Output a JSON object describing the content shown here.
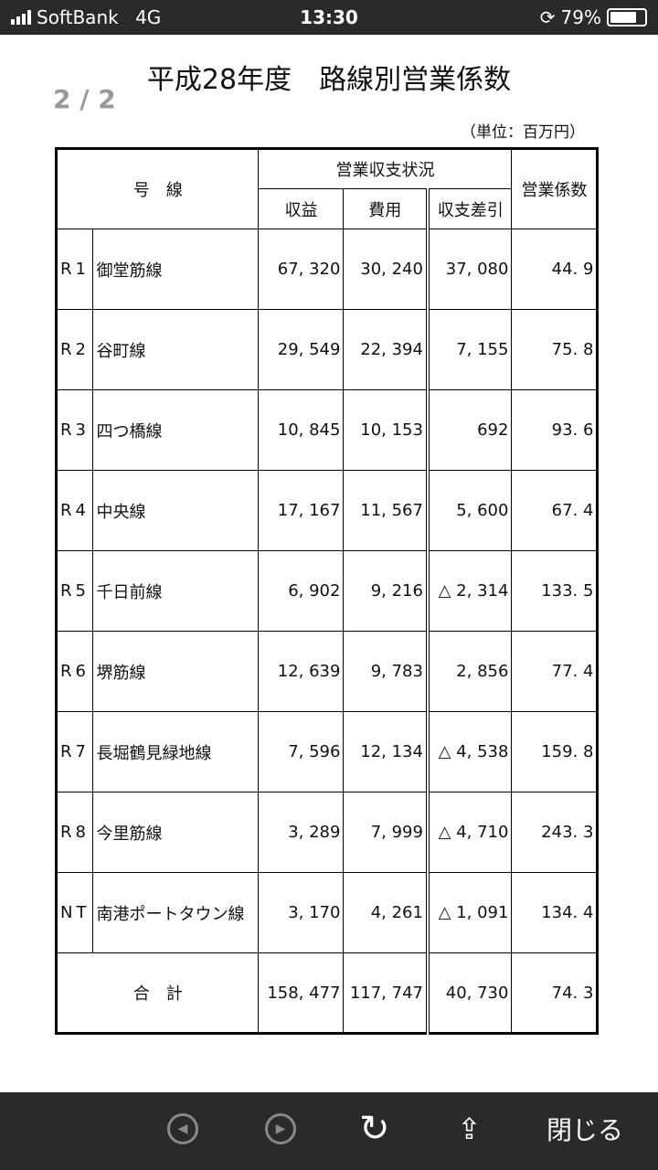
{
  "status": {
    "carrier": "SoftBank",
    "network": "4G",
    "time": "13:30",
    "battery": "79%",
    "battery_level": 0.79
  },
  "doc": {
    "title": "平成28年度　路線別営業係数",
    "page": "2 / 2",
    "unit": "（単位：百万円）",
    "headers": {
      "line": "号　線",
      "status_group": "営業収支状況",
      "revenue": "収益",
      "cost": "費用",
      "balance": "収支差引",
      "coefficient": "営業係数"
    },
    "rows": [
      {
        "code": "R1",
        "name": "御堂筋線",
        "revenue": "67, 320",
        "cost": "30, 240",
        "balance": "37, 080",
        "coef": "44. 9"
      },
      {
        "code": "R2",
        "name": "谷町線",
        "revenue": "29, 549",
        "cost": "22, 394",
        "balance": "7, 155",
        "coef": "75. 8"
      },
      {
        "code": "R3",
        "name": "四つ橋線",
        "revenue": "10, 845",
        "cost": "10, 153",
        "balance": "692",
        "coef": "93. 6"
      },
      {
        "code": "R4",
        "name": "中央線",
        "revenue": "17, 167",
        "cost": "11, 567",
        "balance": "5, 600",
        "coef": "67. 4"
      },
      {
        "code": "R5",
        "name": "千日前線",
        "revenue": "6, 902",
        "cost": "9, 216",
        "balance": "△ 2, 314",
        "coef": "133. 5"
      },
      {
        "code": "R6",
        "name": "堺筋線",
        "revenue": "12, 639",
        "cost": "9, 783",
        "balance": "2, 856",
        "coef": "77. 4"
      },
      {
        "code": "R7",
        "name": "長堀鶴見緑地線",
        "revenue": "7, 596",
        "cost": "12, 134",
        "balance": "△ 4, 538",
        "coef": "159. 8"
      },
      {
        "code": "R8",
        "name": "今里筋線",
        "revenue": "3, 289",
        "cost": "7, 999",
        "balance": "△ 4, 710",
        "coef": "243. 3"
      },
      {
        "code": "NT",
        "name": "南港ポートタウン線",
        "revenue": "3, 170",
        "cost": "4, 261",
        "balance": "△ 1, 091",
        "coef": "134. 4"
      }
    ],
    "total": {
      "label": "合　計",
      "revenue": "158, 477",
      "cost": "117, 747",
      "balance": "40, 730",
      "coef": "74. 3"
    }
  },
  "toolbar": {
    "close_label": "閉じる",
    "icons": [
      "back-icon",
      "forward-icon",
      "reload-icon",
      "share-icon"
    ]
  }
}
